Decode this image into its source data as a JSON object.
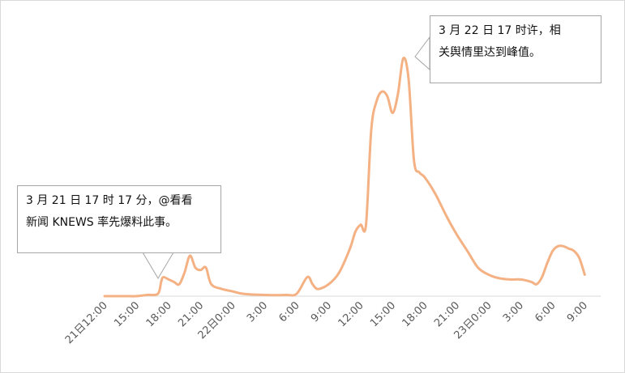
{
  "colors": {
    "line": "#f4b183",
    "axis": "#d9d9d9",
    "tick_text": "#595959",
    "callout_border": "#a6a6a6"
  },
  "chart_data": {
    "type": "line",
    "title": "",
    "xlabel": "",
    "ylabel": "",
    "ylim": [
      0,
      100
    ],
    "grid": false,
    "x_tick_labels": [
      "21日12:00",
      "15:00",
      "18:00",
      "21:00",
      "22日0:00",
      "3:00",
      "6:00",
      "9:00",
      "12:00",
      "15:00",
      "18:00",
      "21:00",
      "23日0:00",
      "3:00",
      "6:00",
      "9:00"
    ],
    "x_range_hours": [
      12,
      58.5
    ],
    "series": [
      {
        "name": "",
        "points": [
          [
            12.0,
            0
          ],
          [
            13.0,
            0
          ],
          [
            14.0,
            0
          ],
          [
            15.0,
            0
          ],
          [
            16.0,
            0.5
          ],
          [
            17.0,
            1
          ],
          [
            17.3,
            6
          ],
          [
            17.5,
            8
          ],
          [
            18.0,
            7
          ],
          [
            18.5,
            6
          ],
          [
            19.0,
            5
          ],
          [
            19.5,
            10
          ],
          [
            20.0,
            17
          ],
          [
            20.5,
            12
          ],
          [
            21.0,
            11
          ],
          [
            21.5,
            12
          ],
          [
            22.0,
            5
          ],
          [
            23.0,
            3
          ],
          [
            24.0,
            2
          ],
          [
            25.0,
            1
          ],
          [
            27.0,
            0.5
          ],
          [
            29.0,
            0.5
          ],
          [
            30.0,
            1
          ],
          [
            31.0,
            8
          ],
          [
            31.5,
            5
          ],
          [
            32.0,
            3
          ],
          [
            33.0,
            5
          ],
          [
            34.0,
            10
          ],
          [
            35.0,
            20
          ],
          [
            35.5,
            27
          ],
          [
            36.0,
            30
          ],
          [
            36.5,
            30
          ],
          [
            37.0,
            70
          ],
          [
            37.5,
            82
          ],
          [
            38.0,
            86
          ],
          [
            38.5,
            84
          ],
          [
            39.0,
            77
          ],
          [
            39.5,
            85
          ],
          [
            40.0,
            100
          ],
          [
            40.5,
            91
          ],
          [
            41.0,
            57
          ],
          [
            41.5,
            52
          ],
          [
            42.0,
            50
          ],
          [
            43.0,
            43
          ],
          [
            44.0,
            34
          ],
          [
            45.0,
            26
          ],
          [
            46.0,
            19
          ],
          [
            47.0,
            12
          ],
          [
            48.0,
            9
          ],
          [
            49.0,
            7.5
          ],
          [
            50.0,
            7
          ],
          [
            51.0,
            7
          ],
          [
            52.0,
            6
          ],
          [
            52.5,
            5
          ],
          [
            53.0,
            8
          ],
          [
            53.5,
            14
          ],
          [
            54.0,
            19
          ],
          [
            54.5,
            21
          ],
          [
            55.0,
            21
          ],
          [
            55.5,
            20
          ],
          [
            56.0,
            19
          ],
          [
            56.5,
            16
          ],
          [
            57.0,
            9
          ]
        ]
      }
    ]
  },
  "annotations": [
    {
      "line1": "3 月 21 日 17 时 17 分，@看看",
      "line2": "新闻 KNEWS 率先爆料此事。"
    },
    {
      "line1": "3 月 22 日 17 时许，相",
      "line2": "关舆情里达到峰值。"
    }
  ]
}
